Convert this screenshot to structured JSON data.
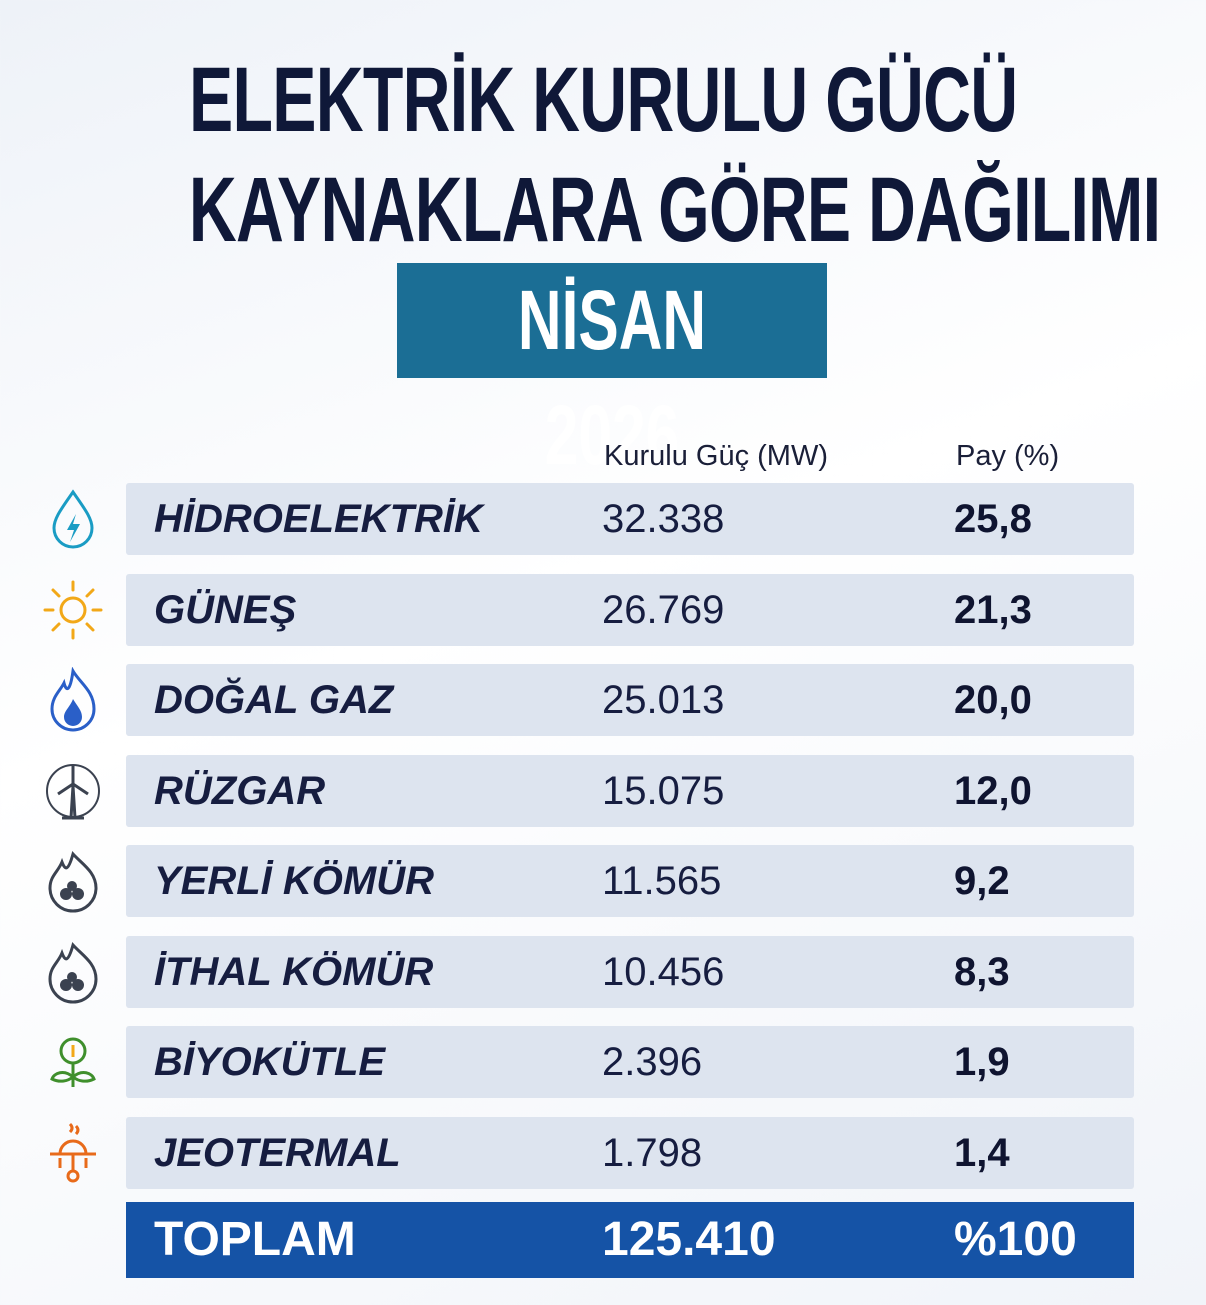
{
  "header": {
    "title_lines": [
      "ELEKTRİK KURULU GÜCÜ",
      "KAYNAKLARA GÖRE DAĞILIMI"
    ],
    "period": "NİSAN 2026"
  },
  "table": {
    "columns": [
      "Kurulu Güç (MW)",
      "Pay (%)"
    ],
    "rows": [
      [
        "HİDROELEKTRİK",
        "32.338",
        "25,8"
      ],
      [
        "GÜNEŞ",
        "26.769",
        "21,3"
      ],
      [
        "DOĞAL GAZ",
        "25.013",
        "20,0"
      ],
      [
        "RÜZGAR",
        "15.075",
        "12,0"
      ],
      [
        "YERLİ KÖMÜR",
        "11.565",
        "9,2"
      ],
      [
        "İTHAL KÖMÜR",
        "10.456",
        "8,3"
      ],
      [
        "BİYOKÜTLE",
        "2.396",
        "1,9"
      ],
      [
        "JEOTERMAL",
        "1.798",
        "1,4"
      ]
    ],
    "total": [
      "TOPLAM",
      "125.410",
      "%100"
    ]
  }
}
